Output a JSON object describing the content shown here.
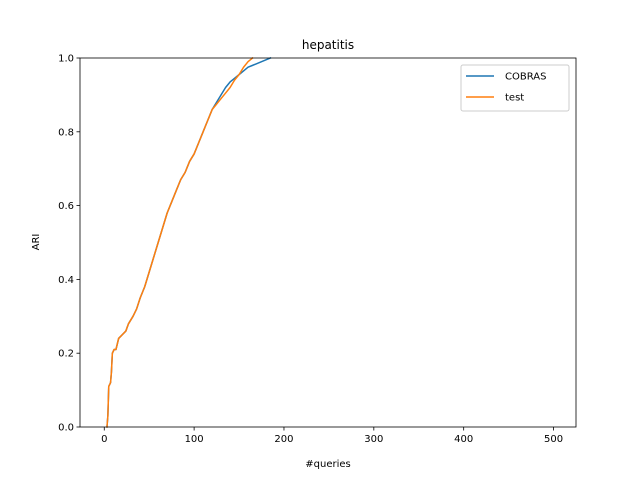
{
  "chart_data": {
    "type": "line",
    "title": "hepatitis",
    "xlabel": "#queries",
    "ylabel": "ARI",
    "xlim": [
      -27,
      525
    ],
    "ylim": [
      0,
      1
    ],
    "xticks": [
      0,
      100,
      200,
      300,
      400,
      500
    ],
    "yticks": [
      0.0,
      0.2,
      0.4,
      0.6,
      0.8,
      1.0
    ],
    "xtick_labels": [
      "0",
      "100",
      "200",
      "300",
      "400",
      "500"
    ],
    "ytick_labels": [
      "0.0",
      "0.2",
      "0.4",
      "0.6",
      "0.8",
      "1.0"
    ],
    "grid": false,
    "legend_position": "upper right",
    "series": [
      {
        "name": "COBRAS",
        "color": "#1f77b4",
        "points": [
          [
            3,
            0
          ],
          [
            4,
            0.03
          ],
          [
            5,
            0.11
          ],
          [
            7,
            0.12
          ],
          [
            8,
            0.15
          ],
          [
            9,
            0.2
          ],
          [
            11,
            0.21
          ],
          [
            13,
            0.21
          ],
          [
            16,
            0.24
          ],
          [
            20,
            0.25
          ],
          [
            24,
            0.26
          ],
          [
            27,
            0.28
          ],
          [
            32,
            0.3
          ],
          [
            36,
            0.32
          ],
          [
            40,
            0.35
          ],
          [
            45,
            0.38
          ],
          [
            50,
            0.42
          ],
          [
            55,
            0.46
          ],
          [
            60,
            0.5
          ],
          [
            65,
            0.54
          ],
          [
            70,
            0.58
          ],
          [
            75,
            0.61
          ],
          [
            80,
            0.64
          ],
          [
            85,
            0.67
          ],
          [
            90,
            0.69
          ],
          [
            95,
            0.72
          ],
          [
            100,
            0.74
          ],
          [
            105,
            0.77
          ],
          [
            110,
            0.8
          ],
          [
            115,
            0.83
          ],
          [
            120,
            0.86
          ],
          [
            125,
            0.88
          ],
          [
            130,
            0.9
          ],
          [
            135,
            0.92
          ],
          [
            140,
            0.935
          ],
          [
            145,
            0.945
          ],
          [
            150,
            0.955
          ],
          [
            155,
            0.965
          ],
          [
            160,
            0.975
          ],
          [
            165,
            0.98
          ],
          [
            170,
            0.985
          ],
          [
            175,
            0.99
          ],
          [
            180,
            0.995
          ],
          [
            185,
            1.0
          ]
        ]
      },
      {
        "name": "test",
        "color": "#ff7f0e",
        "points": [
          [
            3,
            0
          ],
          [
            4,
            0.03
          ],
          [
            5,
            0.11
          ],
          [
            7,
            0.12
          ],
          [
            8,
            0.15
          ],
          [
            9,
            0.2
          ],
          [
            11,
            0.21
          ],
          [
            13,
            0.21
          ],
          [
            16,
            0.24
          ],
          [
            20,
            0.25
          ],
          [
            24,
            0.26
          ],
          [
            27,
            0.28
          ],
          [
            32,
            0.3
          ],
          [
            36,
            0.32
          ],
          [
            40,
            0.35
          ],
          [
            45,
            0.38
          ],
          [
            50,
            0.42
          ],
          [
            55,
            0.46
          ],
          [
            60,
            0.5
          ],
          [
            65,
            0.54
          ],
          [
            70,
            0.58
          ],
          [
            75,
            0.61
          ],
          [
            80,
            0.64
          ],
          [
            85,
            0.67
          ],
          [
            90,
            0.69
          ],
          [
            95,
            0.72
          ],
          [
            100,
            0.74
          ],
          [
            105,
            0.77
          ],
          [
            110,
            0.8
          ],
          [
            115,
            0.83
          ],
          [
            120,
            0.86
          ],
          [
            125,
            0.875
          ],
          [
            130,
            0.89
          ],
          [
            135,
            0.905
          ],
          [
            140,
            0.92
          ],
          [
            145,
            0.94
          ],
          [
            150,
            0.955
          ],
          [
            155,
            0.975
          ],
          [
            160,
            0.99
          ],
          [
            165,
            1.0
          ]
        ]
      }
    ]
  }
}
